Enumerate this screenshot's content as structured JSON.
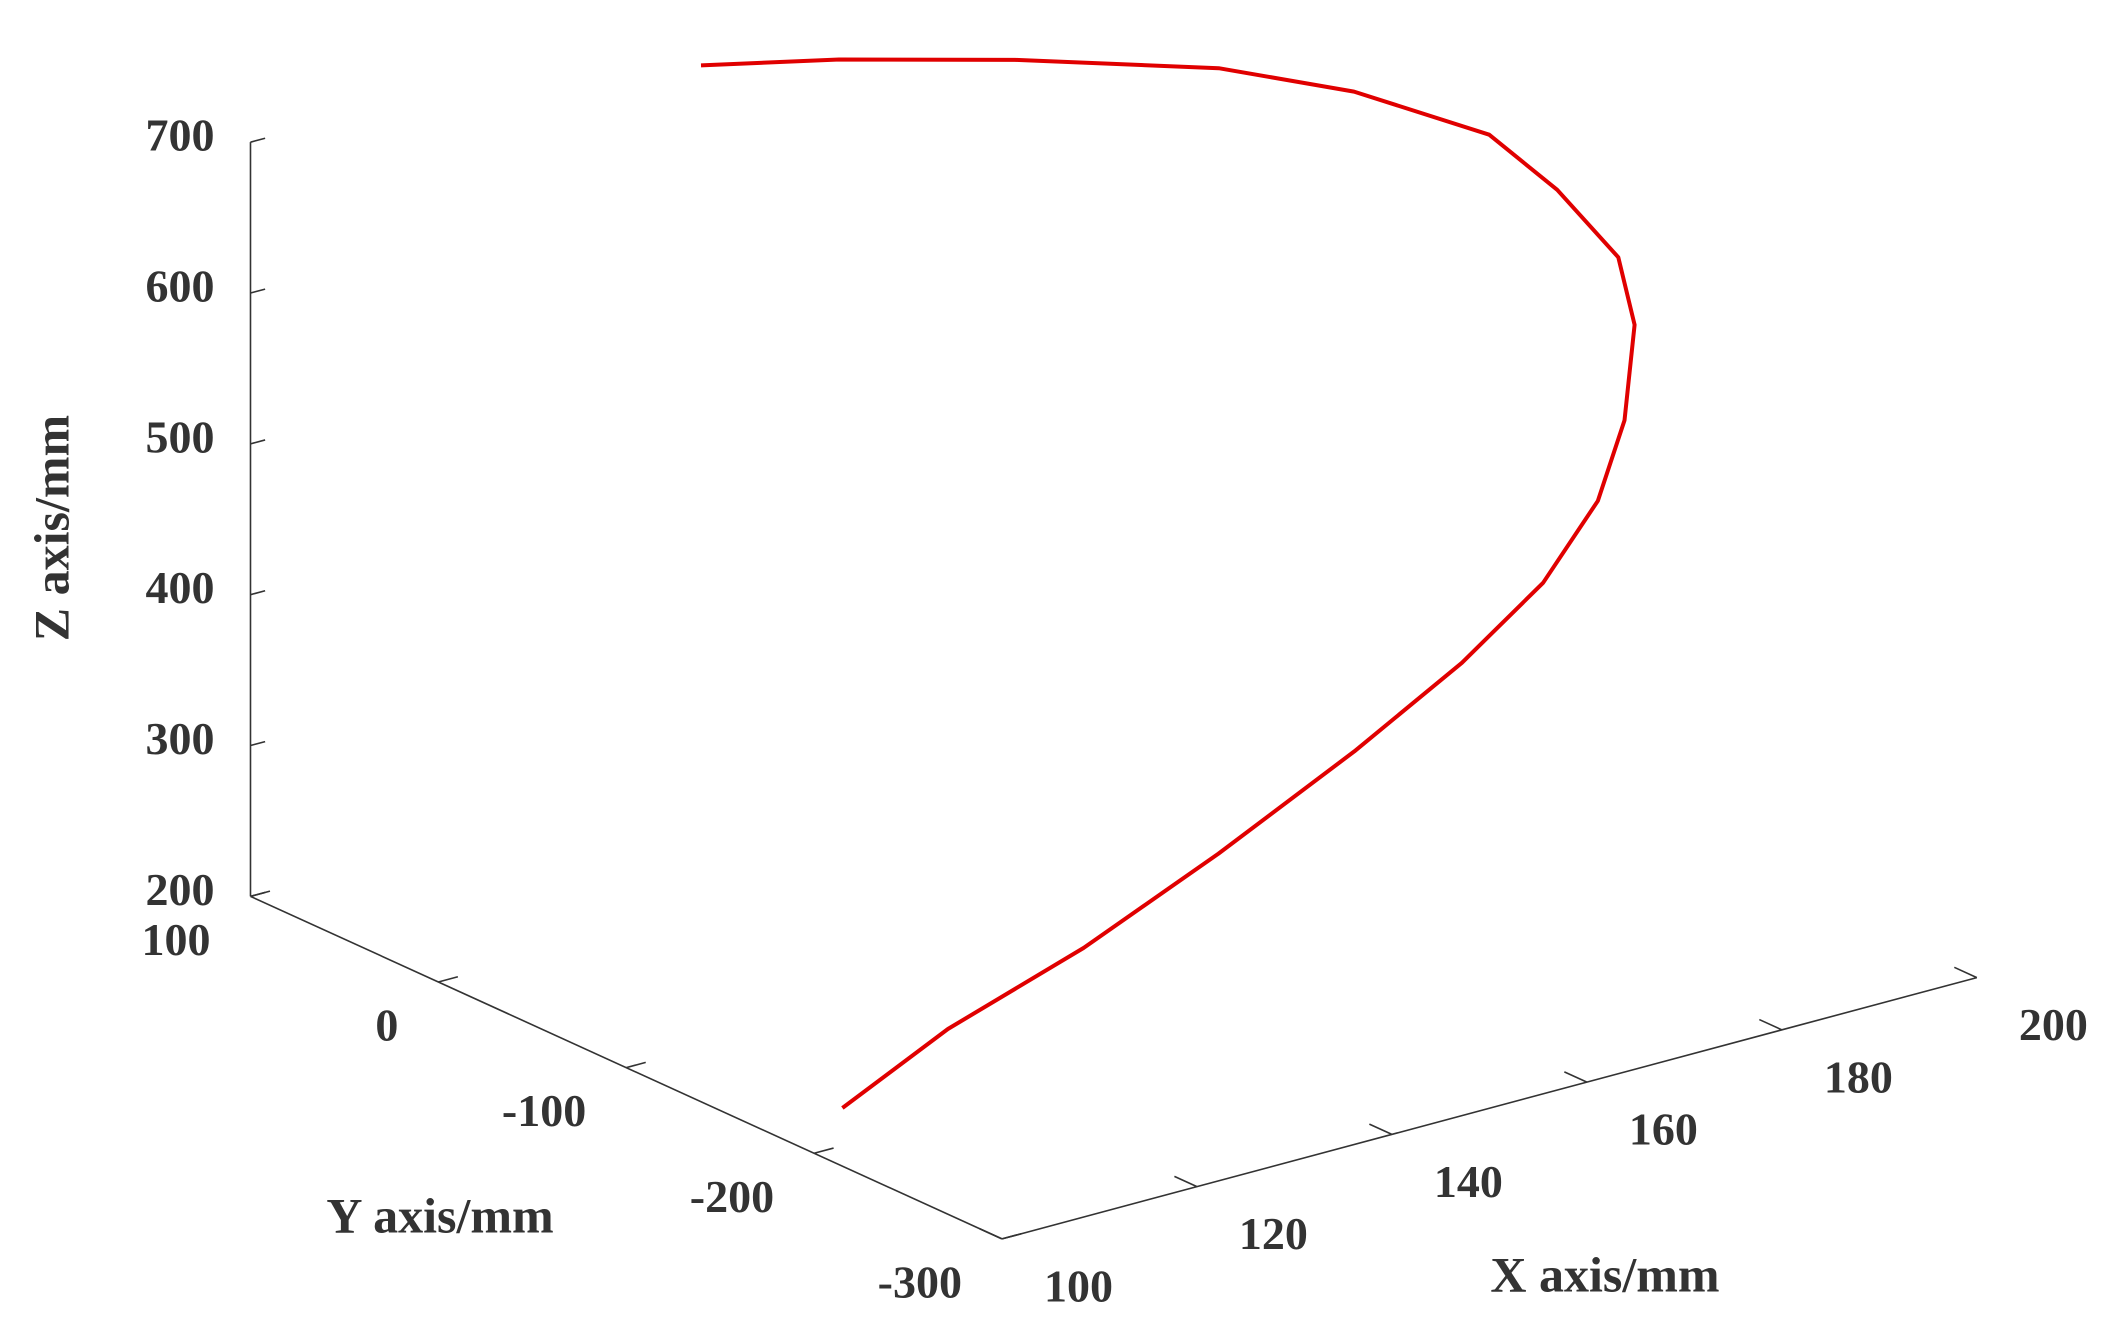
{
  "chart_data": {
    "type": "line3d",
    "xlabel": "X axis/mm",
    "ylabel": "Y axis/mm",
    "zlabel": "Z axis/mm",
    "xlim": [
      100,
      200
    ],
    "ylim": [
      -300,
      100
    ],
    "zlim": [
      200,
      700
    ],
    "xticks": [
      100,
      120,
      140,
      160,
      180,
      200
    ],
    "yticks": [
      -300,
      -200,
      -100,
      0,
      100
    ],
    "zticks": [
      200,
      300,
      400,
      500,
      600,
      700
    ],
    "series": [
      {
        "color": "#e00000",
        "x": [
          102.9,
          114.5,
          129.2,
          143.8,
          158.5,
          170.3,
          179.4,
          185.8,
          189.3,
          191.1,
          190.2,
          184.7,
          178.5,
          165.4,
          152.3,
          132.2,
          114.9,
          101.5
        ],
        "y": [
          -200,
          -196,
          -192,
          -188,
          -184,
          -180,
          -176,
          -172,
          -168,
          -164,
          -160,
          -156,
          -152,
          -148,
          -144,
          -140,
          -136,
          -132
        ],
        "z": [
          225,
          255,
          281,
          316,
          356,
          392,
          427,
          468,
          513,
          571,
          615,
          667,
          712,
          761,
          797,
          835,
          863,
          880
        ]
      }
    ]
  }
}
